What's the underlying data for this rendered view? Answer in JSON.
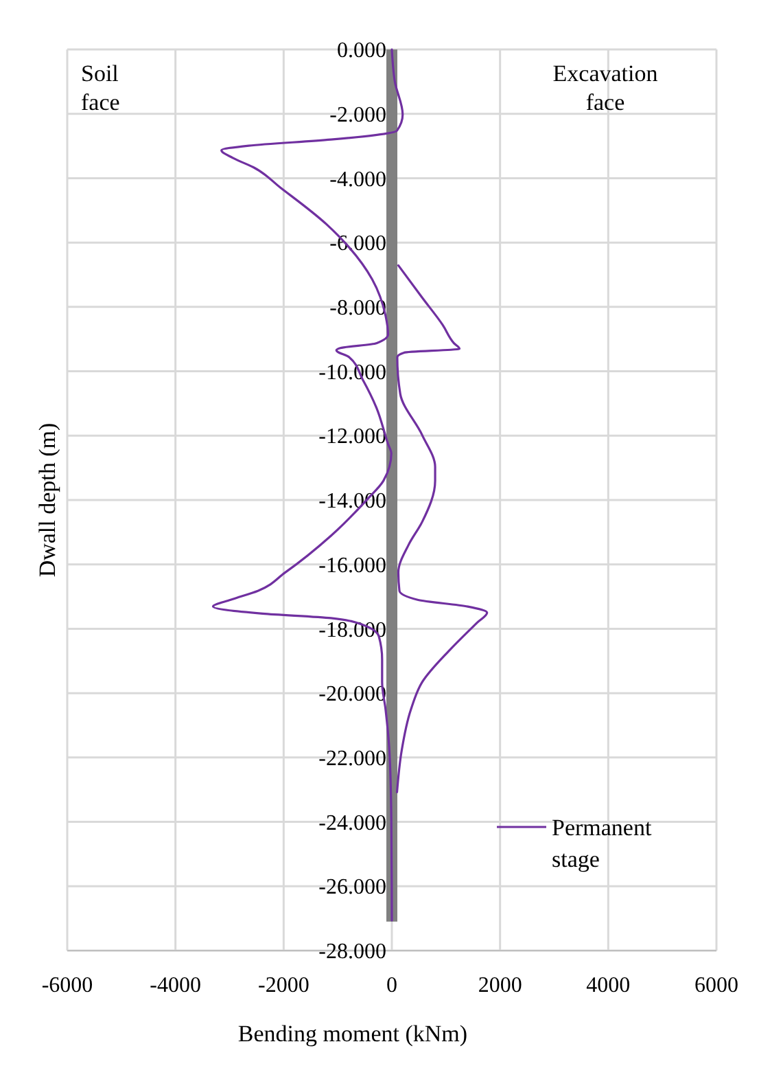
{
  "chart_data": {
    "type": "line",
    "xlabel": "Bending moment (kNm)",
    "ylabel": "Dwall depth  (m)",
    "annotations": [
      "Soil face",
      "Excavation face"
    ],
    "xlim": [
      -6000,
      6000
    ],
    "xticks": [
      -6000,
      -4000,
      -2000,
      0,
      2000,
      4000,
      6000
    ],
    "ylim": [
      -28,
      0
    ],
    "yticks": [
      {
        "value": 0,
        "label": "0.000"
      },
      {
        "value": -2,
        "label": "-2.000"
      },
      {
        "value": -4,
        "label": "-4.000"
      },
      {
        "value": -6,
        "label": "-6.000"
      },
      {
        "value": -8,
        "label": "-8.000"
      },
      {
        "value": -10,
        "label": "-10.000"
      },
      {
        "value": -12,
        "label": "-12.000"
      },
      {
        "value": -14,
        "label": "-14.000"
      },
      {
        "value": -16,
        "label": "-16.000"
      },
      {
        "value": -18,
        "label": "-18.000"
      },
      {
        "value": -20,
        "label": "-20.000"
      },
      {
        "value": -22,
        "label": "-22.000"
      },
      {
        "value": -24,
        "label": "-24.000"
      },
      {
        "value": -26,
        "label": "-26.000"
      },
      {
        "value": -28,
        "label": "-28.000"
      }
    ],
    "grid": true,
    "legend": "bottom right",
    "series": [
      {
        "color": "#808080",
        "x": [
          0,
          0,
          0,
          0
        ],
        "values": [
          0,
          -9,
          -18,
          -27.1
        ]
      },
      {
        "name": "Permanent stage",
        "color": "#7030a0",
        "x": [
          0,
          55,
          200,
          95,
          -1125,
          -2645,
          -3150,
          -2940,
          -2560,
          -2055,
          -1210,
          -790,
          -365,
          -115,
          -70,
          -285,
          -955,
          -1025,
          -790,
          -535,
          -285,
          -70,
          -10,
          -155,
          -450,
          -1125,
          -1970,
          -2475,
          -2980,
          -3305,
          -2390,
          -1125,
          -535,
          -240,
          -180,
          -180,
          -115,
          -45,
          -10,
          0
        ],
        "values": [
          0,
          -1.0,
          -2.02,
          -2.52,
          -2.8,
          -2.99,
          -3.13,
          -3.37,
          -3.66,
          -4.3,
          -5.43,
          -6.15,
          -7.14,
          -8.28,
          -8.85,
          -9.13,
          -9.28,
          -9.35,
          -9.56,
          -10.27,
          -11.13,
          -12.26,
          -12.55,
          -13.4,
          -13.97,
          -15.11,
          -16.25,
          -16.82,
          -17.1,
          -17.31,
          -17.53,
          -17.67,
          -17.88,
          -18.24,
          -18.95,
          -19.66,
          -20.52,
          -21.8,
          -23.93,
          -27.06
        ]
      },
      {
        "color": "#7030a0",
        "x": [
          120,
          560,
          940,
          1150,
          1250,
          225,
          100,
          155,
          560,
          800,
          800,
          560,
          310,
          120,
          140,
          475,
          1405,
          1760,
          1575,
          1070,
          560,
          350,
          180,
          95
        ],
        "values": [
          -6.71,
          -7.71,
          -8.56,
          -9.13,
          -9.3,
          -9.42,
          -9.56,
          -10.7,
          -11.98,
          -12.97,
          -13.4,
          -14.68,
          -15.39,
          -16.25,
          -16.82,
          -17.1,
          -17.31,
          -17.5,
          -17.81,
          -18.66,
          -19.66,
          -20.52,
          -21.8,
          -23.08
        ]
      }
    ]
  }
}
